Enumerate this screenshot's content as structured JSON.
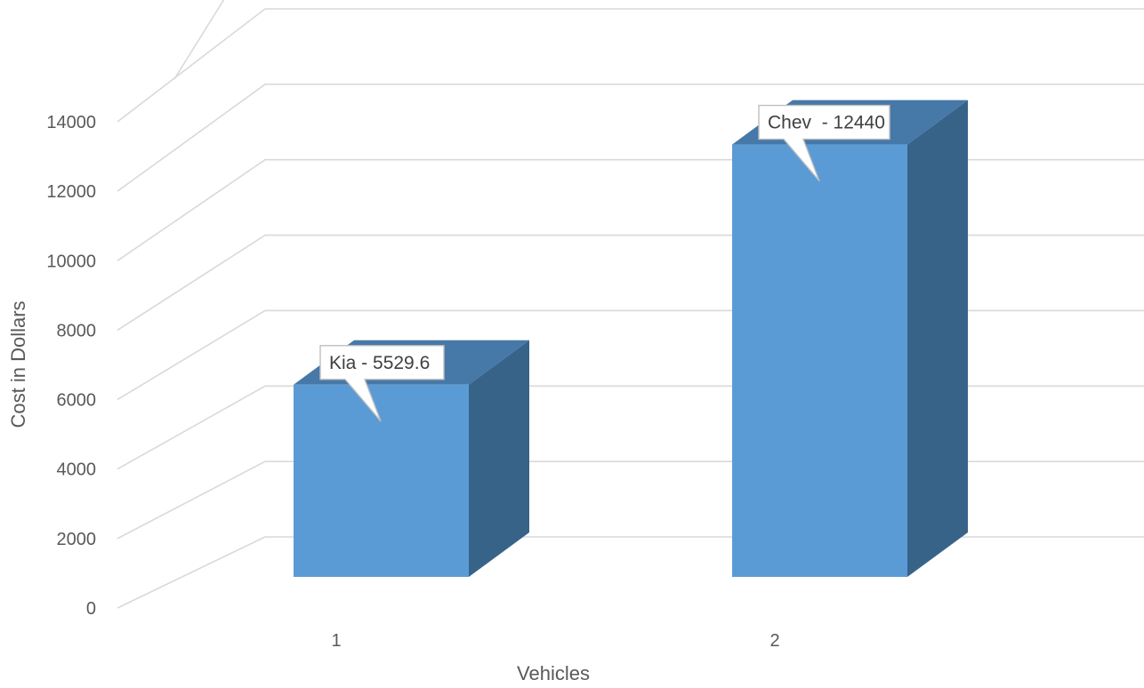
{
  "chart_data": {
    "type": "bar",
    "style": "3d-column",
    "categories": [
      "1",
      "2"
    ],
    "values": [
      5529.6,
      12440
    ],
    "data_labels": [
      "Kia - 5529.6",
      "Chev  - 12440"
    ],
    "xlabel": "Vehicles",
    "ylabel": "Cost in Dollars",
    "ylim": [
      0,
      14000
    ],
    "yticks": [
      "0",
      "2000",
      "4000",
      "6000",
      "8000",
      "10000",
      "12000",
      "14000"
    ],
    "grid": true,
    "legend": "none",
    "colors": {
      "front": "#5b9bd5",
      "top": "#4678a8",
      "side": "#386389",
      "grid": "#d9d9d9",
      "text": "#595959"
    }
  }
}
